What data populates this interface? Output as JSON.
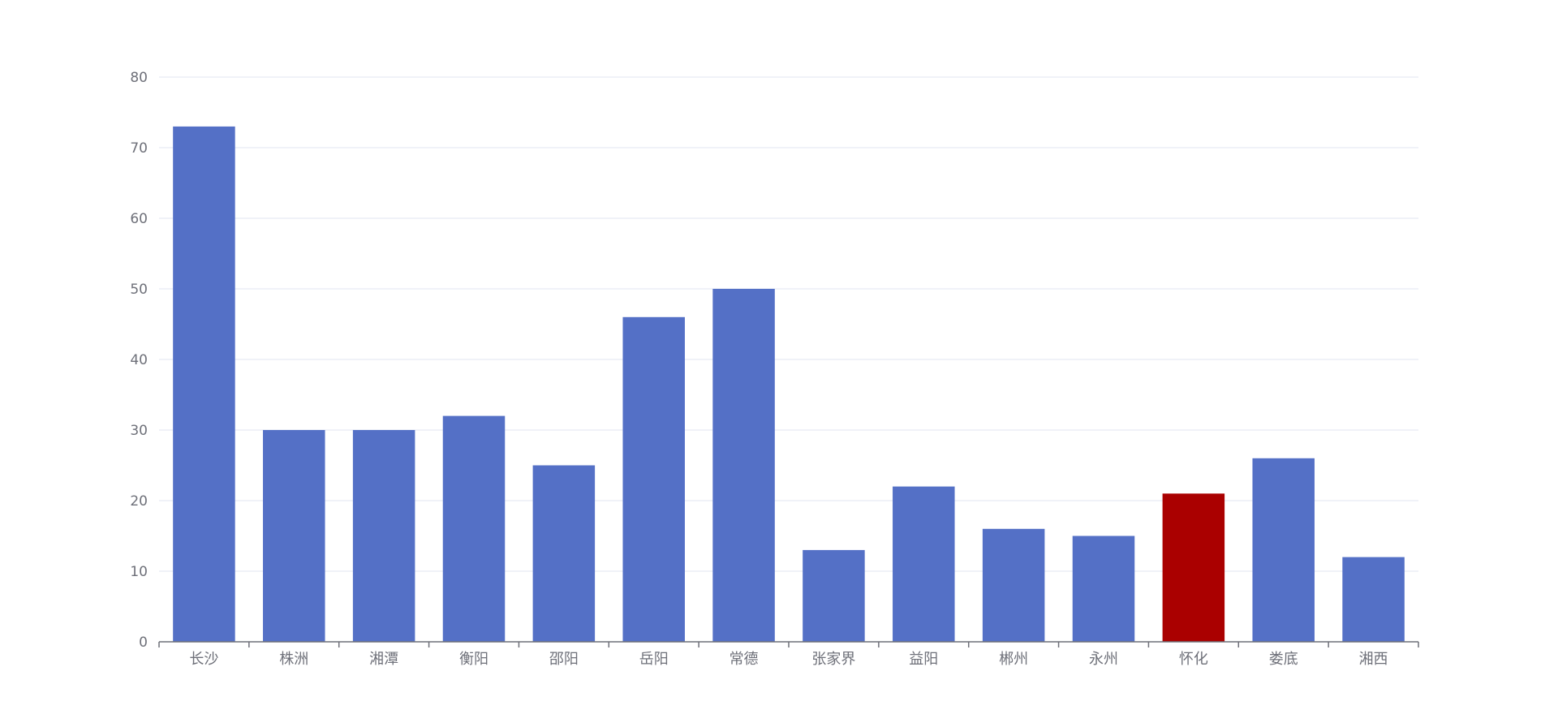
{
  "chart_data": {
    "type": "bar",
    "categories": [
      "长沙",
      "株洲",
      "湘潭",
      "衡阳",
      "邵阳",
      "岳阳",
      "常德",
      "张家界",
      "益阳",
      "郴州",
      "永州",
      "怀化",
      "娄底",
      "湘西"
    ],
    "values": [
      73,
      30,
      30,
      32,
      25,
      46,
      50,
      13,
      22,
      16,
      15,
      21,
      26,
      12
    ],
    "title": "",
    "xlabel": "",
    "ylabel": "",
    "ylim": [
      0,
      80
    ],
    "yticks": [
      "0",
      "10",
      "20",
      "30",
      "40",
      "50",
      "60",
      "70",
      "80"
    ],
    "grid": true,
    "legend": "none",
    "colors": {
      "bar": "#5470c6",
      "highlight": "#aa0000",
      "grid": "#e0e6f1",
      "axis": "#6e7079",
      "label": "#6e7079"
    },
    "highlight_category": "怀化"
  }
}
